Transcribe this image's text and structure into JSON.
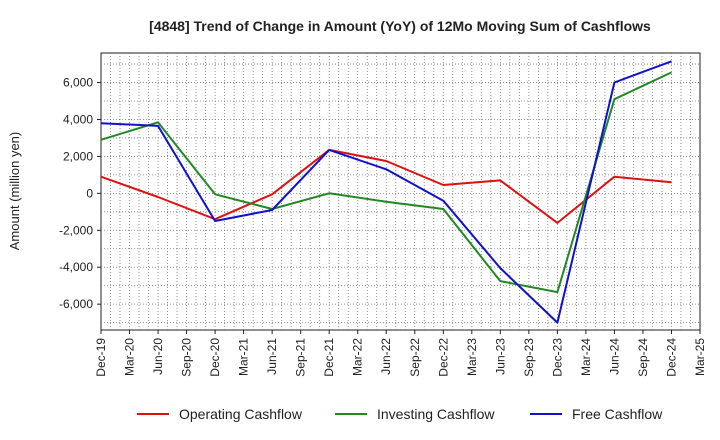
{
  "chart_data": {
    "type": "line",
    "title": "[4848]  Trend of Change in Amount (YoY) of 12Mo Moving Sum of Cashflows",
    "xlabel": "",
    "ylabel": "Amount (million yen)",
    "categories": [
      "Dec-19",
      "Mar-20",
      "Jun-20",
      "Sep-20",
      "Dec-20",
      "Mar-21",
      "Jun-21",
      "Sep-21",
      "Dec-21",
      "Mar-22",
      "Jun-22",
      "Sep-22",
      "Dec-22",
      "Mar-23",
      "Jun-23",
      "Sep-23",
      "Dec-23",
      "Mar-24",
      "Jun-24",
      "Sep-24",
      "Dec-24",
      "Mar-25"
    ],
    "ylim": [
      -7400,
      7600
    ],
    "yticks": [
      -6000,
      -4000,
      -2000,
      0,
      2000,
      4000,
      6000
    ],
    "ytick_labels": [
      "-6,000",
      "-4,000",
      "-2,000",
      "0",
      "2,000",
      "4,000",
      "6,000"
    ],
    "grid": true,
    "legend_position": "bottom",
    "series": [
      {
        "name": "Operating Cashflow",
        "color": "#dd1111",
        "points": [
          {
            "x": "Dec-19",
            "y": 900
          },
          {
            "x": "Jun-20",
            "y": -200
          },
          {
            "x": "Dec-20",
            "y": -1400
          },
          {
            "x": "Jun-21",
            "y": -50
          },
          {
            "x": "Dec-21",
            "y": 2350
          },
          {
            "x": "Jun-22",
            "y": 1750
          },
          {
            "x": "Dec-22",
            "y": 450
          },
          {
            "x": "Jun-23",
            "y": 700
          },
          {
            "x": "Dec-23",
            "y": -1600
          },
          {
            "x": "Jun-24",
            "y": 900
          },
          {
            "x": "Dec-24",
            "y": 600
          }
        ]
      },
      {
        "name": "Investing Cashflow",
        "color": "#228822",
        "points": [
          {
            "x": "Dec-19",
            "y": 2900
          },
          {
            "x": "Jun-20",
            "y": 3850
          },
          {
            "x": "Dec-20",
            "y": -50
          },
          {
            "x": "Jun-21",
            "y": -850
          },
          {
            "x": "Dec-21",
            "y": 0
          },
          {
            "x": "Jun-22",
            "y": -450
          },
          {
            "x": "Dec-22",
            "y": -850
          },
          {
            "x": "Jun-23",
            "y": -4750
          },
          {
            "x": "Dec-23",
            "y": -5350
          },
          {
            "x": "Jun-24",
            "y": 5100
          },
          {
            "x": "Dec-24",
            "y": 6550
          }
        ]
      },
      {
        "name": "Free Cashflow",
        "color": "#1111cc",
        "points": [
          {
            "x": "Dec-19",
            "y": 3800
          },
          {
            "x": "Jun-20",
            "y": 3650
          },
          {
            "x": "Dec-20",
            "y": -1500
          },
          {
            "x": "Jun-21",
            "y": -900
          },
          {
            "x": "Dec-21",
            "y": 2350
          },
          {
            "x": "Jun-22",
            "y": 1300
          },
          {
            "x": "Dec-22",
            "y": -400
          },
          {
            "x": "Jun-23",
            "y": -4050
          },
          {
            "x": "Dec-23",
            "y": -7000
          },
          {
            "x": "Jun-24",
            "y": 6000
          },
          {
            "x": "Dec-24",
            "y": 7150
          }
        ]
      }
    ]
  }
}
